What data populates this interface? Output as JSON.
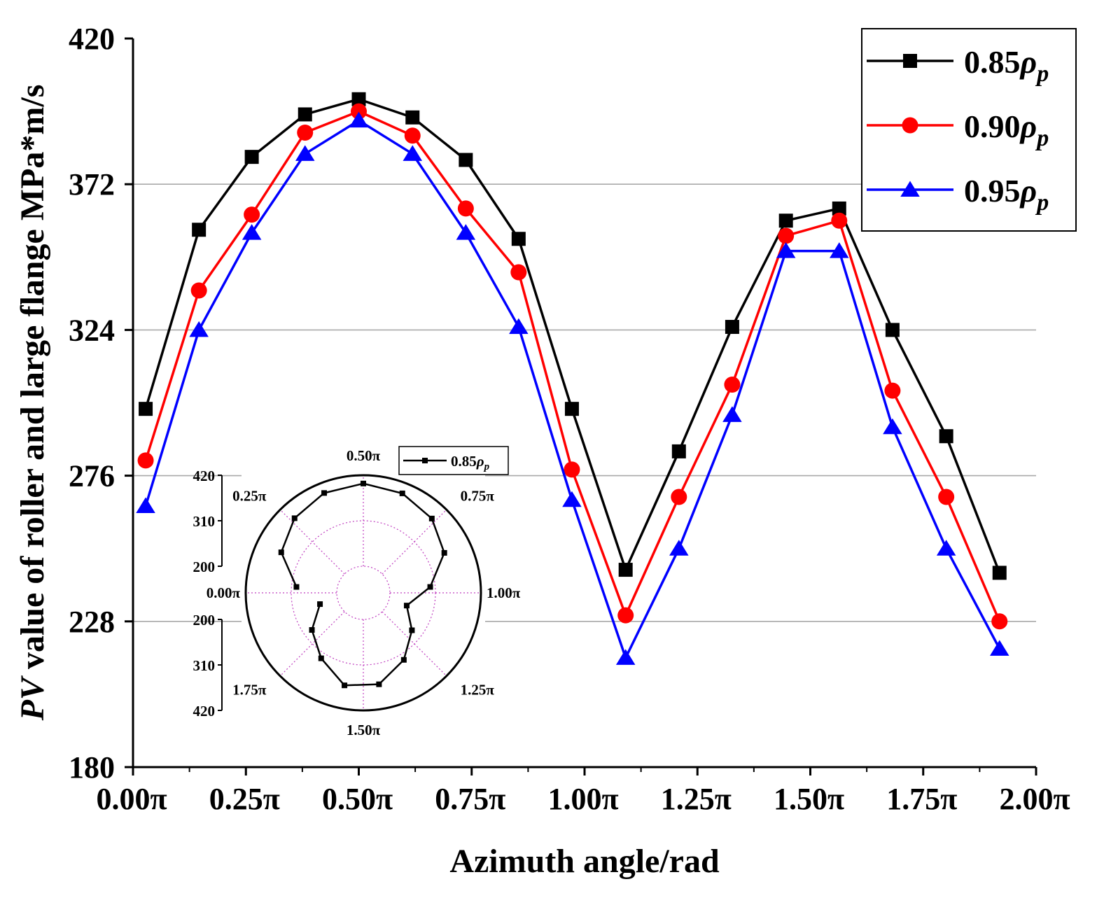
{
  "chart_data": [
    {
      "type": "line",
      "title": "",
      "xlabel": "Azimuth angle/rad",
      "ylabel_prefix": "PV",
      "ylabel_rest": " value of roller and large flange MPa*m/s",
      "xlim": [
        0.0,
        2.0
      ],
      "ylim": [
        180,
        420
      ],
      "x_ticks": [
        0.0,
        0.25,
        0.5,
        0.75,
        1.0,
        1.25,
        1.5,
        1.75,
        2.0
      ],
      "x_tick_labels": [
        "0.00π",
        "0.25π",
        "0.50π",
        "0.75π",
        "1.00π",
        "1.25π",
        "1.50π",
        "1.75π",
        "2.00π"
      ],
      "y_ticks": [
        180,
        228,
        276,
        324,
        372,
        420
      ],
      "y_tick_labels": [
        "180",
        "228",
        "276",
        "324",
        "372",
        "420"
      ],
      "grid": "horizontal",
      "legend_position": "top-right",
      "x": [
        0.028,
        0.146,
        0.263,
        0.381,
        0.5,
        0.619,
        0.737,
        0.854,
        0.972,
        1.091,
        1.209,
        1.327,
        1.446,
        1.564,
        1.682,
        1.801,
        1.919
      ],
      "series": [
        {
          "name_main": "0.85",
          "name_sym": "ρ",
          "name_sub": "p",
          "color": "#000000",
          "marker": "square",
          "values": [
            298,
            357,
            381,
            395,
            400,
            394,
            380,
            354,
            298,
            245,
            284,
            325,
            360,
            364,
            324,
            289,
            244
          ]
        },
        {
          "name_main": "0.90",
          "name_sym": "ρ",
          "name_sub": "p",
          "color": "#ff0000",
          "marker": "circle",
          "values": [
            281,
            337,
            362,
            389,
            396,
            388,
            364,
            343,
            278,
            230,
            269,
            306,
            355,
            360,
            304,
            269,
            228
          ]
        },
        {
          "name_main": "0.95",
          "name_sym": "ρ",
          "name_sub": "p",
          "color": "#0000ff",
          "marker": "triangle",
          "values": [
            266,
            324,
            356,
            382,
            393,
            382,
            356,
            325,
            268,
            216,
            252,
            296,
            350,
            350,
            292,
            252,
            219
          ]
        }
      ]
    },
    {
      "type": "polar",
      "title": "",
      "r_range": [
        200,
        420
      ],
      "r_ticks": [
        200,
        310,
        420
      ],
      "r_tick_labels": [
        "200",
        "310",
        "420"
      ],
      "theta_labels": [
        "1.50π",
        "1.25π",
        "1.00π",
        "0.75π",
        "0.50π",
        "0.25π",
        "0.00π",
        "1.75π"
      ],
      "theta_values": [
        1.5,
        1.25,
        1.0,
        0.75,
        0.5,
        0.25,
        0.0,
        1.75
      ],
      "legend_main": "0.85",
      "legend_sym": "ρ",
      "legend_sub": "p",
      "color": "#000000",
      "marker": "square",
      "theta": [
        0.028,
        0.146,
        0.263,
        0.381,
        0.5,
        0.619,
        0.737,
        0.854,
        0.972,
        1.091,
        1.209,
        1.327,
        1.446,
        1.564,
        1.682,
        1.801,
        1.919
      ],
      "values": [
        298,
        357,
        381,
        395,
        400,
        394,
        380,
        354,
        298,
        245,
        284,
        325,
        360,
        364,
        324,
        289,
        244
      ]
    }
  ]
}
